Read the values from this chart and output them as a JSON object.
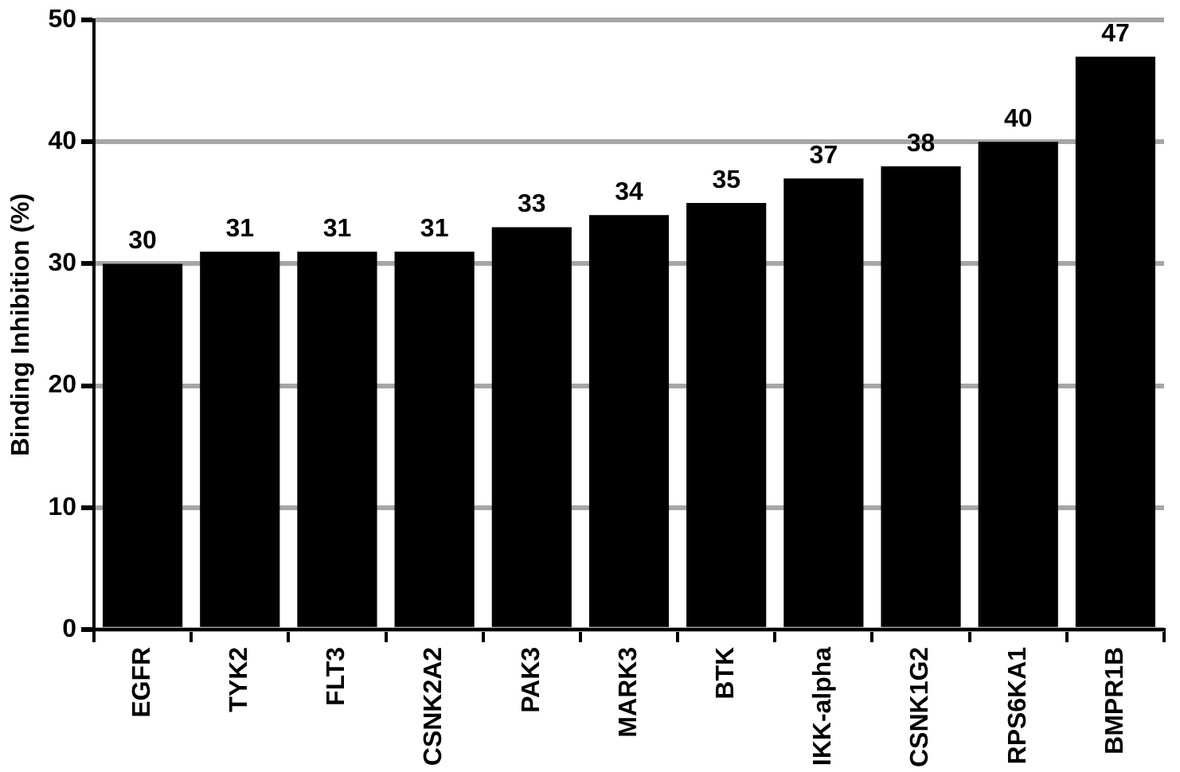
{
  "chart_data": {
    "type": "bar",
    "ylabel": "Binding Inhibition (%)",
    "categories": [
      "EGFR",
      "TYK2",
      "FLT3",
      "CSNK2A2",
      "PAK3",
      "MARK3",
      "BTK",
      "IKK-alpha",
      "CSNK1G2",
      "RPS6KA1",
      "BMPR1B"
    ],
    "values": [
      30,
      31,
      31,
      31,
      33,
      34,
      35,
      37,
      38,
      40,
      47
    ],
    "color": "#000000",
    "ylim": [
      0,
      50
    ],
    "yticks": [
      0,
      10,
      20,
      30,
      40,
      50
    ],
    "grid": "y",
    "data_labels": true,
    "legend": false
  }
}
